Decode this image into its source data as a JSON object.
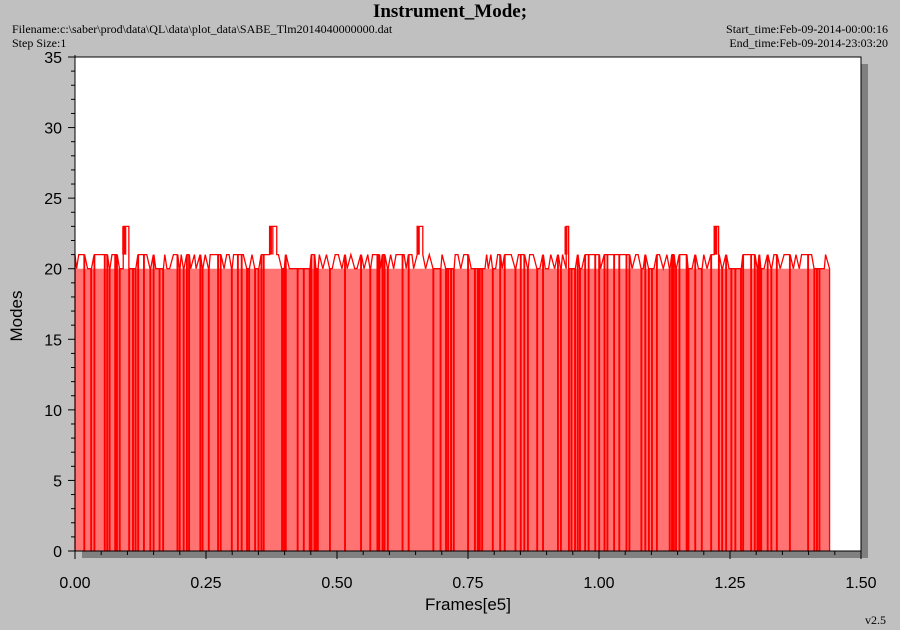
{
  "header": {
    "title": "Instrument_Mode;",
    "filename": "Filename:c:\\saber\\prod\\data\\QL\\data\\plot_data\\SABE_Tlm2014040000000.dat",
    "step_size": "Step Size:1",
    "start_time": "Start_time:Feb-09-2014-00:00:16",
    "end_time": "End_time:Feb-09-2014-23:03:20"
  },
  "footer": {
    "version": "v2.5"
  },
  "colors": {
    "background": "#c0c0c0",
    "plot_area": "#ffffff",
    "shadow": "#808080",
    "series": "#ff0000"
  },
  "chart_data": {
    "type": "line",
    "title": "Instrument_Mode;",
    "xlabel": "Frames[e5]",
    "ylabel": "Modes",
    "xlim": [
      0,
      1.5
    ],
    "ylim": [
      0,
      35
    ],
    "x_ticks": [
      "0.00",
      "0.25",
      "0.50",
      "0.75",
      "1.00",
      "1.25",
      "1.50"
    ],
    "y_ticks": [
      "0",
      "5",
      "10",
      "15",
      "20",
      "25",
      "30",
      "35"
    ],
    "grid": false,
    "legend": "none",
    "series": [
      {
        "levels": [
          0,
          20,
          21,
          23
        ],
        "x_range": [
          0.0,
          1.44
        ],
        "dominant_values": [
          20,
          21
        ],
        "spikes_to_23": [
          0.093,
          0.373,
          0.655,
          0.937,
          1.223
        ],
        "final_value": 20
      }
    ]
  }
}
